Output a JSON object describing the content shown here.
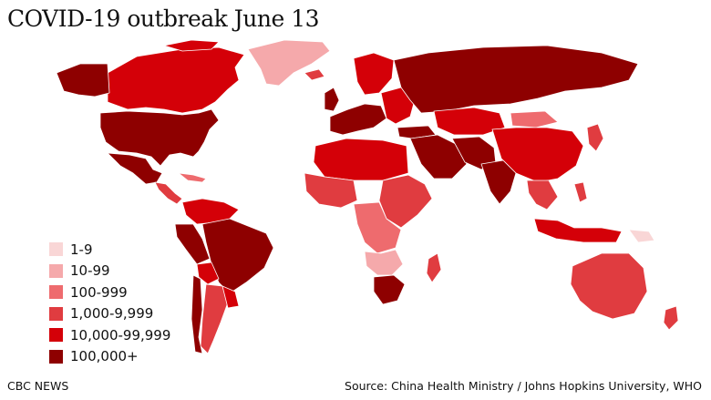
{
  "title": "COVID-19 outbreak June 13",
  "legend": [
    {
      "label": "1-9",
      "color": "#f9d6d6"
    },
    {
      "label": "10-99",
      "color": "#f5a9ab"
    },
    {
      "label": "100-999",
      "color": "#ee6b6e"
    },
    {
      "label": "1,000-9,999",
      "color": "#e03c40"
    },
    {
      "label": "10,000-99,999",
      "color": "#d40008"
    },
    {
      "label": "100,000+",
      "color": "#8e0000"
    }
  ],
  "footer": {
    "publisher": "CBC NEWS",
    "source": "Source: China Health Ministry / Johns Hopkins University, WHO"
  }
}
